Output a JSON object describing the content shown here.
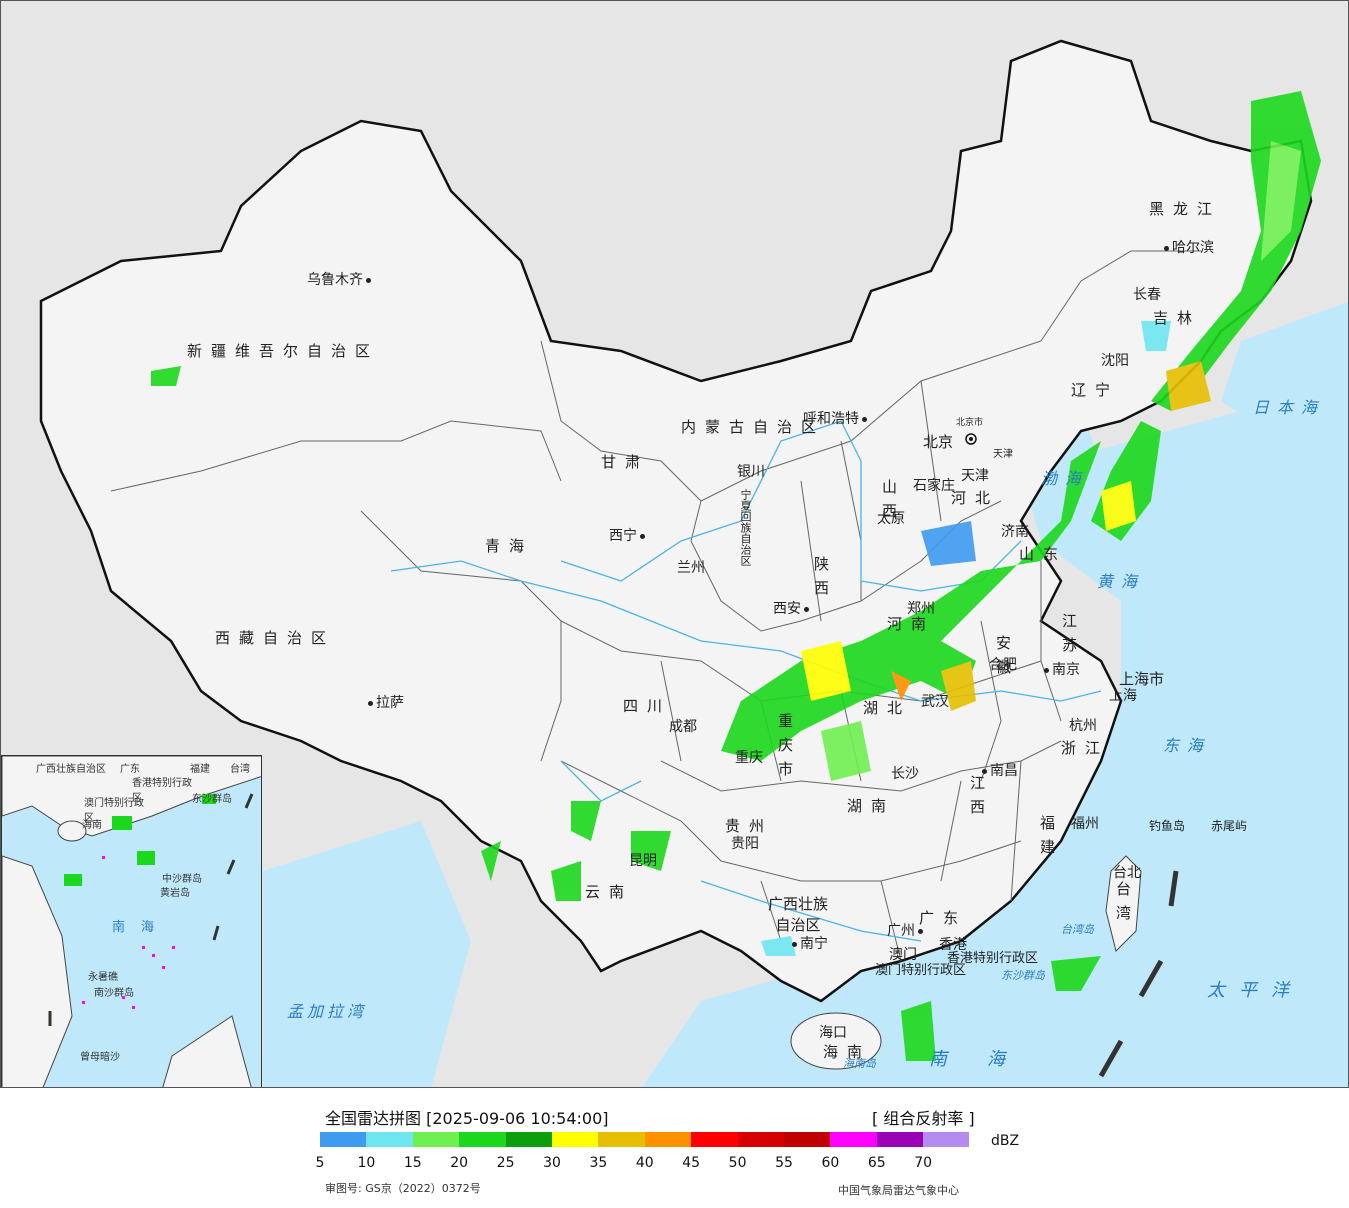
{
  "legend": {
    "title": "全国雷达拼图 [2025-09-06 10:54:00]",
    "product": "[ 组合反射率 ]",
    "unit": "dBZ",
    "review_no": "审图号: GS京（2022）0372号",
    "agency": "中国气象局雷达气象中心",
    "ticks": [
      "5",
      "10",
      "15",
      "20",
      "25",
      "30",
      "35",
      "40",
      "45",
      "50",
      "55",
      "60",
      "65",
      "70"
    ],
    "colors": [
      "#3e9bf0",
      "#6ee6f0",
      "#70f050",
      "#1cd81c",
      "#0c9e0c",
      "#ffff00",
      "#e6c000",
      "#ff9000",
      "#ff0000",
      "#d60000",
      "#c00000",
      "#ff00ff",
      "#9a00b4",
      "#b48cf0"
    ]
  },
  "colors": {
    "sea": "#bfe9fb",
    "land": "#f4f4f4",
    "outside": "#e6e6e6",
    "border": "#111111"
  },
  "provinces": [
    "新疆维吾尔自治区",
    "西藏自治区",
    "青海",
    "甘肃",
    "内蒙古自治区",
    "黑龙江",
    "吉林",
    "辽宁",
    "河北",
    "山西",
    "陕西",
    "宁夏回族自治区",
    "四川",
    "重庆市",
    "湖北",
    "湖南",
    "河南",
    "山东",
    "江苏",
    "安徽",
    "上海市",
    "浙江",
    "江西",
    "福建",
    "台湾",
    "广东",
    "广西壮族自治区",
    "贵州",
    "云南",
    "海南",
    "北京市",
    "天津",
    "香港特别行政区",
    "澳门特别行政区"
  ],
  "cities": [
    "乌鲁木齐",
    "拉萨",
    "西宁",
    "兰州",
    "银川",
    "呼和浩特",
    "北京",
    "天津",
    "石家庄",
    "太原",
    "济南",
    "郑州",
    "西安",
    "成都",
    "重庆",
    "昆明",
    "贵阳",
    "南宁",
    "长沙",
    "武汉",
    "南昌",
    "合肥",
    "南京",
    "上海",
    "杭州",
    "福州",
    "台北",
    "广州",
    "澳门",
    "香港",
    "海口",
    "哈尔滨",
    "长春",
    "沈阳"
  ],
  "seas": [
    "渤海",
    "黄海",
    "东海",
    "日本海",
    "太平洋",
    "南海",
    "孟加拉湾",
    "台湾岛",
    "海南岛",
    "钓鱼岛",
    "赤尾屿",
    "东沙群岛"
  ],
  "inset": {
    "labels": [
      "广西壮族自治区",
      "广东",
      "福建",
      "台湾",
      "香港特别行政区",
      "澳门特别行政区",
      "海南",
      "南海",
      "中沙群岛",
      "黄岩岛",
      "永暑礁",
      "南沙群岛",
      "曾母暗沙",
      "东沙群岛"
    ]
  }
}
